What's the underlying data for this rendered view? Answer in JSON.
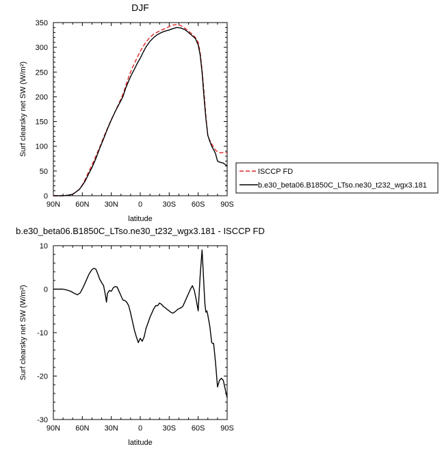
{
  "chart_data": [
    {
      "type": "line",
      "title": "DJF",
      "xlabel": "latitude",
      "ylabel": "Surf clearsky net SW (W/m²)",
      "xlim": [
        90,
        -90
      ],
      "ylim": [
        0,
        350
      ],
      "x_ticks": [
        90,
        60,
        30,
        0,
        -30,
        -60,
        -90
      ],
      "x_tick_labels": [
        "90N",
        "60N",
        "30N",
        "0",
        "30S",
        "60S",
        "90S"
      ],
      "y_ticks": [
        0,
        50,
        100,
        150,
        200,
        250,
        300,
        350
      ],
      "y_tick_labels": [
        "0",
        "50",
        "100",
        "150",
        "200",
        "250",
        "300",
        "350"
      ],
      "grid": false,
      "legend": {
        "position": "right, outside the plot",
        "entries": [
          {
            "label": "ISCCP FD",
            "color": "#dd2222",
            "dash": "dashed"
          },
          {
            "label": "b.e30_beta06.B1850C_LTso.ne30_t232_wgx3.181",
            "color": "#000000",
            "dash": "solid"
          }
        ]
      },
      "series": [
        {
          "name": "ISCCP FD",
          "color": "#dd2222",
          "dash": "dashed",
          "x": [
            90,
            85,
            80,
            75,
            70,
            67,
            63,
            60,
            57,
            54,
            50,
            46,
            42,
            38,
            34,
            30,
            26,
            22,
            18,
            15,
            12,
            9,
            6,
            3,
            0,
            -3,
            -6,
            -10,
            -14,
            -18,
            -22,
            -26,
            -30,
            -34,
            -38,
            -42,
            -46,
            -50,
            -54,
            -57,
            -60,
            -62,
            -64,
            -66,
            -68,
            -70,
            -72,
            -74,
            -76,
            -78,
            -80,
            -82,
            -84,
            -86,
            -88,
            -90
          ],
          "values": [
            0,
            0,
            0,
            1,
            3,
            7,
            13,
            22,
            33,
            46,
            62,
            80,
            98,
            118,
            136,
            154,
            170,
            187,
            205,
            222,
            240,
            255,
            268,
            280,
            292,
            302,
            311,
            320,
            327,
            331,
            335,
            338,
            342,
            345,
            346,
            344,
            339,
            333,
            326,
            320,
            310,
            290,
            255,
            210,
            160,
            120,
            112,
            105,
            98,
            92,
            89,
            87,
            87,
            87,
            87,
            87
          ]
        },
        {
          "name": "b.e30_beta06.B1850C_LTso.ne30_t232_wgx3.181",
          "color": "#000000",
          "dash": "solid",
          "x": [
            90,
            85,
            80,
            75,
            70,
            67,
            63,
            60,
            57,
            54,
            50,
            46,
            42,
            38,
            34,
            30,
            26,
            22,
            18,
            15,
            12,
            9,
            6,
            3,
            0,
            -3,
            -6,
            -10,
            -14,
            -18,
            -22,
            -26,
            -30,
            -34,
            -38,
            -42,
            -46,
            -50,
            -54,
            -57,
            -60,
            -62,
            -64,
            -66,
            -68,
            -70,
            -72,
            -74,
            -76,
            -78,
            -80,
            -82,
            -84,
            -86,
            -88,
            -90
          ],
          "values": [
            0,
            0,
            0,
            1,
            3,
            7,
            13,
            21,
            30,
            42,
            57,
            75,
            96,
            115,
            135,
            153,
            170,
            185,
            200,
            218,
            232,
            245,
            256,
            268,
            278,
            290,
            301,
            312,
            320,
            326,
            330,
            333,
            335,
            338,
            340,
            339,
            336,
            330,
            323,
            318,
            305,
            285,
            250,
            200,
            155,
            122,
            110,
            100,
            93,
            85,
            70,
            68,
            67,
            66,
            63,
            60
          ]
        }
      ]
    },
    {
      "type": "line",
      "title": "b.e30_beta06.B1850C_LTso.ne30_t232_wgx3.181 - ISCCP FD",
      "xlabel": "latitude",
      "ylabel": "Surf clearsky net SW (W/m²)",
      "xlim": [
        90,
        -90
      ],
      "ylim": [
        -30,
        10
      ],
      "x_ticks": [
        90,
        60,
        30,
        0,
        -30,
        -60,
        -90
      ],
      "x_tick_labels": [
        "90N",
        "60N",
        "30N",
        "0",
        "30S",
        "60S",
        "90S"
      ],
      "y_ticks": [
        -30,
        -20,
        -10,
        0,
        10
      ],
      "y_tick_labels": [
        "-30",
        "-20",
        "-10",
        "0",
        "10"
      ],
      "grid": false,
      "series": [
        {
          "color": "#000000",
          "dash": "solid",
          "x": [
            90,
            84,
            80,
            76,
            72,
            68,
            65,
            62,
            59,
            56,
            53,
            50,
            48,
            46,
            44,
            42,
            40,
            38,
            36,
            35,
            34,
            32,
            30,
            28,
            26,
            24,
            22,
            20,
            18,
            16,
            14,
            12,
            10,
            8,
            6,
            4,
            2,
            0,
            -2,
            -4,
            -6,
            -8,
            -10,
            -12,
            -14,
            -16,
            -18,
            -20,
            -22,
            -24,
            -26,
            -28,
            -30,
            -32,
            -34,
            -36,
            -38,
            -40,
            -42,
            -44,
            -46,
            -48,
            -50,
            -52,
            -54,
            -56,
            -58,
            -60,
            -62,
            -64,
            -65,
            -66,
            -67,
            -68,
            -69,
            -70,
            -72,
            -74,
            -75,
            -76,
            -78,
            -80,
            -82,
            -84,
            -86,
            -88,
            -90
          ],
          "values": [
            0,
            0,
            0,
            -0.2,
            -0.5,
            -1.0,
            -1.3,
            -0.8,
            0.5,
            2.0,
            3.5,
            4.5,
            4.8,
            4.6,
            3.5,
            2.3,
            1.5,
            0.8,
            -1.5,
            -3.0,
            -1.0,
            -0.3,
            -0.5,
            0.3,
            0.6,
            0.5,
            -0.5,
            -1.5,
            -2.5,
            -2.6,
            -3.0,
            -3.8,
            -5.5,
            -7.5,
            -9.5,
            -11.0,
            -12.3,
            -11.3,
            -12.0,
            -11.0,
            -9.0,
            -7.8,
            -6.5,
            -5.5,
            -4.5,
            -3.8,
            -3.8,
            -3.2,
            -3.5,
            -4.0,
            -4.3,
            -4.7,
            -5.0,
            -5.4,
            -5.5,
            -5.2,
            -4.8,
            -4.5,
            -4.3,
            -4.0,
            -3.0,
            -2.0,
            -1.0,
            0.0,
            0.8,
            -0.3,
            -2.5,
            -5.0,
            3.0,
            9.0,
            5.0,
            0.5,
            -3.5,
            -5.3,
            -5.0,
            -6.0,
            -8.5,
            -12.3,
            -12.5,
            -12.5,
            -17.0,
            -22.5,
            -21.0,
            -20.5,
            -21.0,
            -23.0,
            -25.0
          ]
        }
      ]
    }
  ]
}
